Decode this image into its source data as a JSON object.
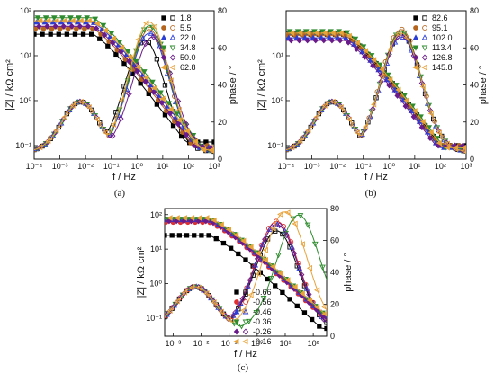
{
  "figure": {
    "panels": [
      {
        "caption": "(a)",
        "ylabel": "|Z| / kΩ cm²",
        "y2label": "phase / °",
        "xlabel": "f / Hz"
      },
      {
        "caption": "(b)",
        "ylabel": "|Z| / kΩ cm²",
        "y2label": "phase / °",
        "xlabel": "f / Hz"
      },
      {
        "caption": "(c)",
        "ylabel": "|Z| / kΩ cm²",
        "y2label": "phase / °",
        "xlabel": "f / Hz"
      }
    ]
  },
  "chart_data": [
    {
      "type": "scatter",
      "title": "",
      "xlabel": "f / Hz",
      "ylabel": "|Z| / kΩ cm²",
      "y2label": "phase / °",
      "xscale": "log",
      "yscale": "log",
      "xlim": [
        0.0001,
        1000
      ],
      "ylim": [
        0.05,
        100
      ],
      "y2lim": [
        0,
        80
      ],
      "xticks": [
        "10⁻⁴",
        "10⁻³",
        "10⁻²",
        "10⁻¹",
        "10⁰",
        "10¹",
        "10²",
        "10³"
      ],
      "yticks": [
        "10⁻¹",
        "10⁰",
        "10¹",
        "10²"
      ],
      "y2ticks": [
        "0",
        "20",
        "40",
        "60",
        "80"
      ],
      "legend_position": "top-right",
      "series": [
        {
          "name": "1.8",
          "color": "#000000",
          "mod_lf": 30,
          "mod_hf": 0.12,
          "phase_peak": 60,
          "peak_f": 2
        },
        {
          "name": "5.5",
          "color": "#b5651d",
          "mod_lf": 40,
          "mod_hf": 0.1,
          "phase_peak": 66,
          "peak_f": 3
        },
        {
          "name": "22.0",
          "color": "#2b3fd6",
          "mod_lf": 55,
          "mod_hf": 0.09,
          "phase_peak": 64,
          "peak_f": 3
        },
        {
          "name": "34.8",
          "color": "#2e8b2e",
          "mod_lf": 70,
          "mod_hf": 0.08,
          "phase_peak": 68,
          "peak_f": 3
        },
        {
          "name": "50.0",
          "color": "#6a1b8a",
          "mod_lf": 45,
          "mod_hf": 0.09,
          "phase_peak": 62,
          "peak_f": 4
        },
        {
          "name": "62.8",
          "color": "#e8a33a",
          "mod_lf": 60,
          "mod_hf": 0.08,
          "phase_peak": 70,
          "peak_f": 3
        }
      ]
    },
    {
      "type": "scatter",
      "title": "",
      "xlabel": "f / Hz",
      "ylabel": "|Z| / kΩ cm²",
      "y2label": "phase / °",
      "xscale": "log",
      "yscale": "log",
      "xlim": [
        0.0001,
        1000
      ],
      "ylim": [
        0.05,
        100
      ],
      "y2lim": [
        0,
        80
      ],
      "xticks": [
        "10⁻⁴",
        "10⁻³",
        "10⁻²",
        "10⁻¹",
        "10⁰",
        "10¹",
        "10²",
        "10³"
      ],
      "yticks": [
        "10⁻¹",
        "10⁰",
        "10¹"
      ],
      "y2ticks": [
        "0",
        "20",
        "40",
        "60",
        "80"
      ],
      "legend_position": "top-right",
      "series": [
        {
          "name": "82.6",
          "color": "#000000",
          "mod_lf": 30,
          "mod_hf": 0.1,
          "phase_peak": 64,
          "peak_f": 3
        },
        {
          "name": "95.1",
          "color": "#b5651d",
          "mod_lf": 28,
          "mod_hf": 0.1,
          "phase_peak": 66,
          "peak_f": 3
        },
        {
          "name": "102.0",
          "color": "#2b3fd6",
          "mod_lf": 25,
          "mod_hf": 0.09,
          "phase_peak": 62,
          "peak_f": 3
        },
        {
          "name": "113.4",
          "color": "#2e8b2e",
          "mod_lf": 35,
          "mod_hf": 0.09,
          "phase_peak": 65,
          "peak_f": 3
        },
        {
          "name": "126.8",
          "color": "#6a1b8a",
          "mod_lf": 22,
          "mod_hf": 0.1,
          "phase_peak": 63,
          "peak_f": 3
        },
        {
          "name": "145.8",
          "color": "#e8a33a",
          "mod_lf": 32,
          "mod_hf": 0.09,
          "phase_peak": 64,
          "peak_f": 3
        }
      ]
    },
    {
      "type": "scatter",
      "title": "",
      "xlabel": "f / Hz",
      "ylabel": "|Z| / kΩ cm²",
      "y2label": "phase / °",
      "xscale": "log",
      "yscale": "log",
      "xlim": [
        0.0005,
        300
      ],
      "ylim": [
        0.03,
        150
      ],
      "y2lim": [
        0,
        80
      ],
      "xticks": [
        "10⁻³",
        "10⁻²",
        "10⁻¹",
        "10⁰",
        "10¹",
        "10²"
      ],
      "yticks": [
        "10⁻¹",
        "10⁰",
        "10¹",
        "10²"
      ],
      "y2ticks": [
        "0",
        "20",
        "40",
        "60",
        "80"
      ],
      "legend_position": "bottom-right",
      "series": [
        {
          "name": "-0.66",
          "color": "#000000",
          "mod_lf": 25,
          "mod_hf": 0.05,
          "phase_peak": 62,
          "peak_f": 5
        },
        {
          "name": "-0.56",
          "color": "#e03030",
          "mod_lf": 60,
          "mod_hf": 0.08,
          "phase_peak": 68,
          "peak_f": 5
        },
        {
          "name": "-0.46",
          "color": "#2b3fd6",
          "mod_lf": 70,
          "mod_hf": 0.08,
          "phase_peak": 66,
          "peak_f": 5
        },
        {
          "name": "-0.36",
          "color": "#2e8b2e",
          "mod_lf": 75,
          "mod_hf": 0.08,
          "phase_peak": 72,
          "peak_f": 30
        },
        {
          "name": "-0.26",
          "color": "#6a1b8a",
          "mod_lf": 65,
          "mod_hf": 0.08,
          "phase_peak": 66,
          "peak_f": 5
        },
        {
          "name": "-0.16",
          "color": "#e8a33a",
          "mod_lf": 80,
          "mod_hf": 0.09,
          "phase_peak": 74,
          "peak_f": 10
        }
      ]
    }
  ]
}
